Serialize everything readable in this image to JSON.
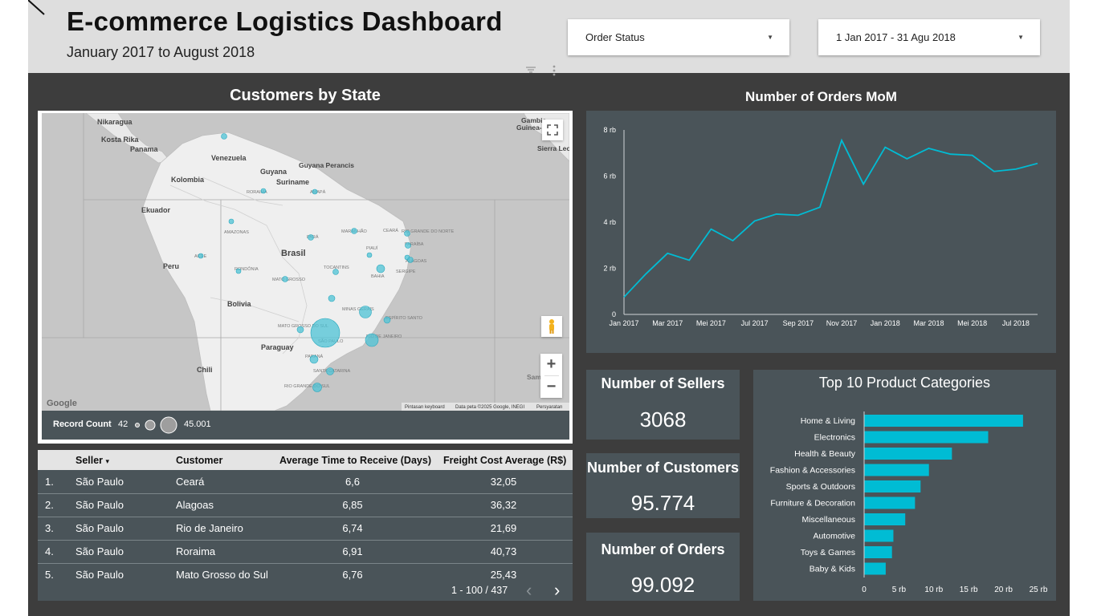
{
  "header": {
    "title": "E-commerce Logistics Dashboard",
    "subtitle": "January 2017 to August 2018",
    "filter_status": "Order Status",
    "filter_date": "1 Jan 2017 - 31 Agu 2018"
  },
  "map": {
    "title": "Customers by State",
    "countries": [
      "Nikaragua",
      "Kosta Rika",
      "Panama",
      "Venezuela",
      "Guyana",
      "Guyana Perancis",
      "Suriname",
      "Kolombia",
      "Ekuador",
      "Brasil",
      "Peru",
      "Bolivia",
      "Paraguay",
      "Chili",
      "Gambia",
      "Guinea-B",
      "Sierra Leo",
      "Sam"
    ],
    "states": [
      "RORAIMA",
      "AMAPÁ",
      "AMAZONAS",
      "PARÁ",
      "MARANHÃO",
      "CEARÁ",
      "RIO GRANDE DO NORTE",
      "PARAÍBA",
      "PIAUÍ",
      "ALAGOAS",
      "ACRE",
      "RONDÔNIA",
      "TOCANTINS",
      "SERGIPE",
      "MATO GROSSO",
      "BAHIA",
      "MINAS GERAIS",
      "ESPÍRITO SANTO",
      "MATO GROSSO DO SUL",
      "SÃO PAULO",
      "RIO DE JANEIRO",
      "PARANÁ",
      "SANTA CATARINA",
      "RIO GRANDE DO SUL"
    ],
    "legend_label": "Record Count",
    "legend_min": "42",
    "legend_max": "45.001",
    "google": "Google",
    "attrib_keyboard": "Pintasan keyboard",
    "attrib_data": "Data peta ©2025 Google, INEGI",
    "attrib_terms": "Persyaratan",
    "icons": {
      "fullscreen": "fullscreen-icon",
      "pegman": "pegman-icon",
      "zoom_in": "+",
      "zoom_out": "−"
    }
  },
  "table": {
    "headers": [
      "Seller",
      "Customer",
      "Average Time to Receive (Days)",
      "Freight Cost Average (R$)"
    ],
    "rows": [
      {
        "idx": "1.",
        "seller": "São Paulo",
        "customer": "Ceará",
        "time": "6,6",
        "cost": "32,05"
      },
      {
        "idx": "2.",
        "seller": "São Paulo",
        "customer": "Alagoas",
        "time": "6,85",
        "cost": "36,32"
      },
      {
        "idx": "3.",
        "seller": "São Paulo",
        "customer": "Rio de Janeiro",
        "time": "6,74",
        "cost": "21,69"
      },
      {
        "idx": "4.",
        "seller": "São Paulo",
        "customer": "Roraima",
        "time": "6,91",
        "cost": "40,73"
      },
      {
        "idx": "5.",
        "seller": "São Paulo",
        "customer": "Mato Grosso do Sul",
        "time": "6,76",
        "cost": "25,43"
      }
    ],
    "pagination": "1 - 100 / 437",
    "prev": "‹",
    "next": "›",
    "sort_icon": "▾"
  },
  "kpis": {
    "sellers_label": "Number of Sellers",
    "sellers_value": "3068",
    "customers_label": "Number of Customers",
    "customers_value": "95.774",
    "orders_label": "Number of Orders",
    "orders_value": "99.092"
  },
  "colors": {
    "accent": "#00bcd4",
    "panel": "#4a5459",
    "background": "#3d3d3d",
    "header": "#dedede"
  },
  "chart_data": [
    {
      "type": "line",
      "title": "Number of Orders MoM",
      "x": [
        "Jan 2017",
        "Feb 2017",
        "Mar 2017",
        "Apr 2017",
        "Mei 2017",
        "Jun 2017",
        "Jul 2017",
        "Aug 2017",
        "Sep 2017",
        "Oct 2017",
        "Nov 2017",
        "Dec 2017",
        "Jan 2018",
        "Feb 2018",
        "Mar 2018",
        "Apr 2018",
        "Mei 2018",
        "Jun 2018",
        "Jul 2018",
        "Aug 2018"
      ],
      "tick_labels": [
        "Jan 2017",
        "Mar 2017",
        "Mei 2017",
        "Jul 2017",
        "Sep 2017",
        "Nov 2017",
        "Jan 2018",
        "Mar 2018",
        "Mei 2018",
        "Jul 2018"
      ],
      "values": [
        750,
        1750,
        2650,
        2350,
        3700,
        3200,
        4050,
        4350,
        4300,
        4650,
        7550,
        5650,
        7250,
        6750,
        7200,
        6950,
        6900,
        6200,
        6300,
        6550
      ],
      "yticks": [
        0,
        2000,
        4000,
        6000,
        8000
      ],
      "ytick_labels": [
        "0",
        "2 rb",
        "4 rb",
        "6 rb",
        "8 rb"
      ],
      "ylim": [
        0,
        8000
      ]
    },
    {
      "type": "bar",
      "orientation": "horizontal",
      "title": "Top 10 Product Categories",
      "categories": [
        "Home & Living",
        "Electronics",
        "Health & Beauty",
        "Fashion & Accessories",
        "Sports & Outdoors",
        "Furniture & Decoration",
        "Miscellaneous",
        "Automotive",
        "Toys & Games",
        "Baby & Kids"
      ],
      "values": [
        22800,
        17800,
        12600,
        9300,
        8100,
        7300,
        5900,
        4200,
        4000,
        3100
      ],
      "xticks": [
        0,
        5000,
        10000,
        15000,
        20000,
        25000
      ],
      "xtick_labels": [
        "0",
        "5 rb",
        "10 rb",
        "15 rb",
        "20 rb",
        "25 rb"
      ],
      "xlim": [
        0,
        25000
      ]
    }
  ]
}
